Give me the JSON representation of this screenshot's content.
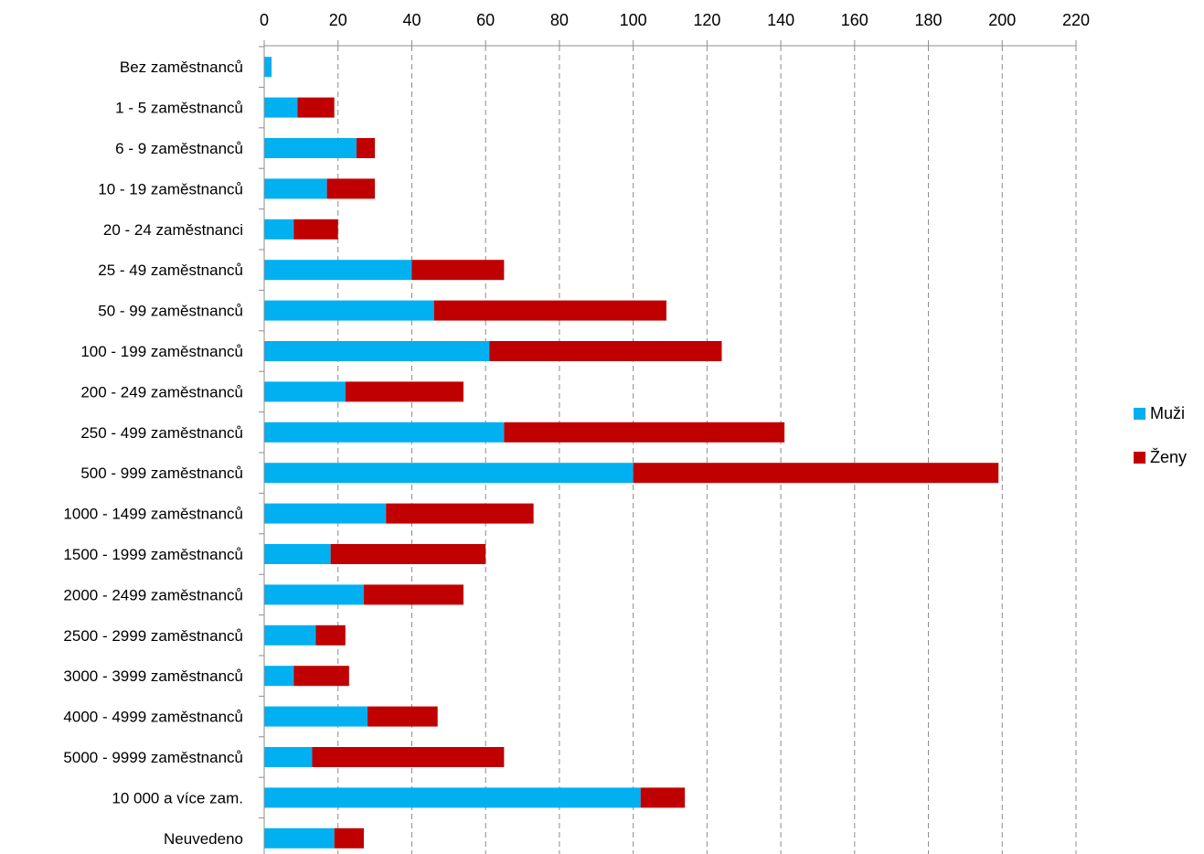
{
  "chart_data": {
    "type": "bar",
    "orientation": "horizontal",
    "stacked": true,
    "categories": [
      "Bez zaměstnanců",
      "1 - 5 zaměstnanců",
      "6 - 9 zaměstnanců",
      "10 - 19 zaměstnanců",
      "20 - 24 zaměstnanci",
      "25 - 49 zaměstnanců",
      "50 - 99 zaměstnanců",
      "100 - 199 zaměstnanců",
      "200 - 249 zaměstnanců",
      "250 - 499 zaměstnanců",
      "500 - 999 zaměstnanců",
      "1000 - 1499 zaměstnanců",
      "1500 - 1999 zaměstnanců",
      "2000 - 2499 zaměstnanců",
      "2500 - 2999 zaměstnanců",
      "3000 - 3999 zaměstnanců",
      "4000 - 4999 zaměstnanců",
      "5000 - 9999 zaměstnanců",
      "10 000 a více zam.",
      "Neuvedeno"
    ],
    "series": [
      {
        "name": "Muži",
        "color": "#00b0f0",
        "values": [
          2,
          9,
          25,
          17,
          8,
          40,
          46,
          61,
          22,
          65,
          100,
          33,
          18,
          27,
          14,
          8,
          28,
          13,
          102,
          19
        ]
      },
      {
        "name": "Ženy",
        "color": "#c00000",
        "values": [
          0,
          10,
          5,
          13,
          12,
          25,
          63,
          63,
          32,
          76,
          99,
          40,
          42,
          27,
          8,
          15,
          19,
          52,
          12,
          8
        ]
      }
    ],
    "xlim": [
      0,
      220
    ],
    "xticks": [
      0,
      20,
      40,
      60,
      80,
      100,
      120,
      140,
      160,
      180,
      200,
      220
    ],
    "axis_position": "top",
    "grid": "vertical-dashed",
    "legend_position": "right"
  }
}
